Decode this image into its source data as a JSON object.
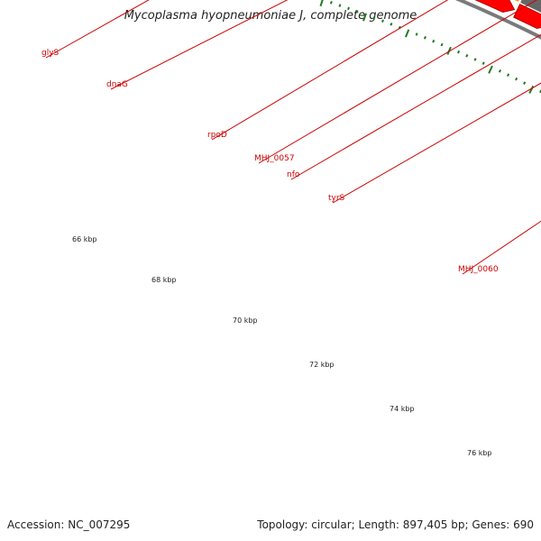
{
  "title": "Mycoplasma hyopneumoniae J, complete genome",
  "accession": "Accession: NC_007295",
  "summary": "Topology: circular; Length: 897,405 bp; Genes: 690",
  "colors": {
    "backbone": "#7a7a7a",
    "cds": "#ff0000",
    "cds_dark": "#b30000",
    "pink": "#ff1aa0",
    "salmon": "#f08a86",
    "orange": "#ff8c00",
    "gray": "#666666",
    "tick": "#1e7a1e",
    "label_line": "#cc0000"
  },
  "kbp_labels": [
    "66 kbp",
    "68 kbp",
    "70 kbp",
    "72 kbp",
    "74 kbp",
    "76 kbp"
  ],
  "genes": [
    {
      "name": "glyS",
      "color": "salmon"
    },
    {
      "name": "dnaG",
      "color": "pink"
    },
    {
      "name": "rpoD",
      "color": "orange"
    },
    {
      "name": "MHJ_0057",
      "color": "gray"
    },
    {
      "name": "nfo",
      "color": "pink"
    },
    {
      "name": "tyrS",
      "color": "salmon"
    },
    {
      "name": "MHJ_0060",
      "color": "pink"
    }
  ]
}
